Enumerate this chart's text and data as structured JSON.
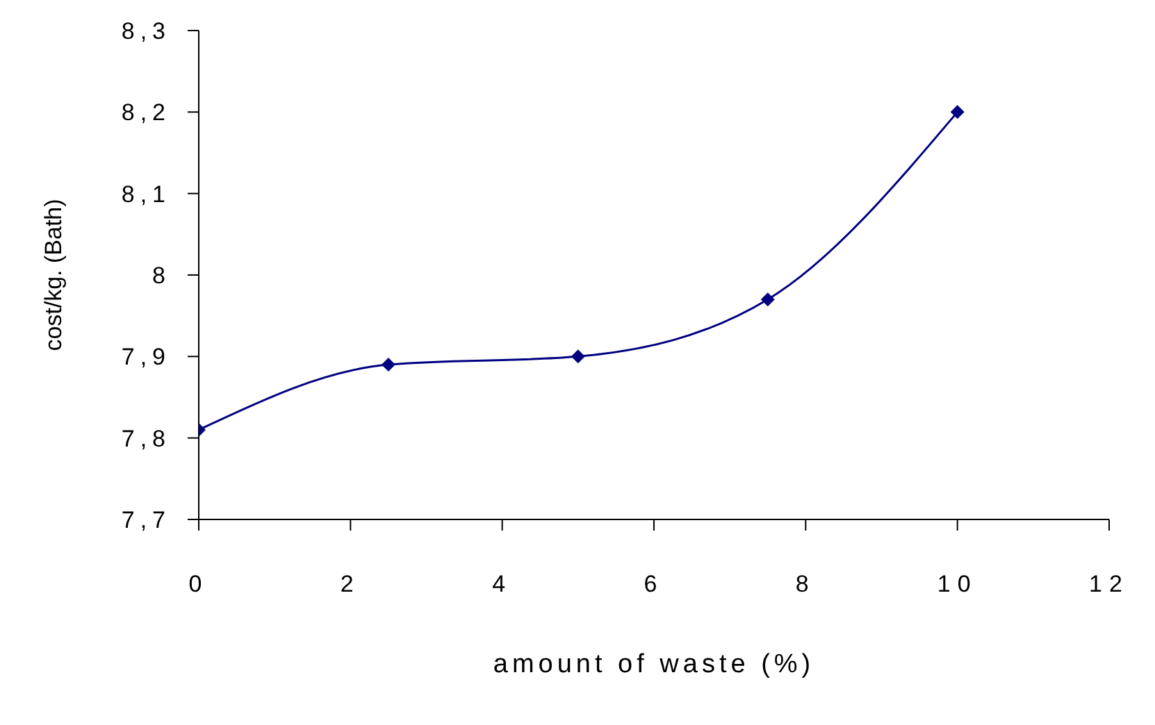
{
  "chart_data": {
    "type": "line",
    "xlabel": "amount of waste (%)",
    "ylabel": "cost/kg. (Bath)",
    "x": [
      0,
      2.5,
      5,
      7.5,
      10
    ],
    "series": [
      {
        "color": "#000080",
        "values": [
          7.81,
          7.89,
          7.9,
          7.97,
          8.2
        ]
      }
    ],
    "xlim": [
      0,
      12
    ],
    "xticks": [
      0,
      2,
      4,
      6,
      8,
      10,
      12
    ],
    "ylim": [
      7.7,
      8.3
    ],
    "yticks": [
      {
        "value": 7.7,
        "label": "7,7"
      },
      {
        "value": 7.8,
        "label": "7,8"
      },
      {
        "value": 7.9,
        "label": "7,9"
      },
      8,
      {
        "value": 8.1,
        "label": "8,1"
      },
      {
        "value": 8.2,
        "label": "8,2"
      },
      {
        "value": 8.3,
        "label": "8,3"
      }
    ],
    "grid": false,
    "legend": false,
    "marker": "diamond",
    "line_style": "solid"
  }
}
